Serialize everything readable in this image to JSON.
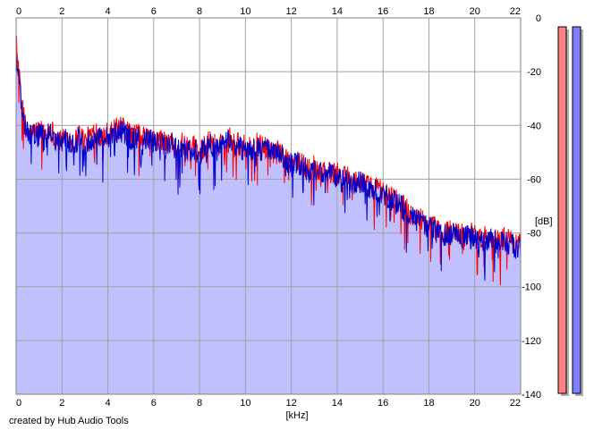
{
  "chart_data": {
    "type": "area",
    "xlabel": "[kHz]",
    "ylabel": "[dB]",
    "xlim": [
      0,
      22
    ],
    "ylim": [
      -140,
      0
    ],
    "x_ticks": [
      "0",
      "2",
      "4",
      "6",
      "8",
      "10",
      "12",
      "14",
      "16",
      "18",
      "20",
      "22"
    ],
    "y_ticks": [
      "0",
      "-20",
      "-40",
      "-60",
      "-80",
      "-100",
      "-120",
      "-140"
    ],
    "grid": true,
    "fill_color": "#c0c0ff",
    "series": [
      {
        "color": "#ff0000",
        "x": [
          0.0,
          0.1,
          0.2,
          0.35,
          0.5,
          0.75,
          1.0,
          1.25,
          1.5,
          1.75,
          2.0,
          2.25,
          2.5,
          2.75,
          3.0,
          3.25,
          3.5,
          3.75,
          4.0,
          4.25,
          4.5,
          4.75,
          5.0,
          5.25,
          5.5,
          5.75,
          6.0,
          6.25,
          6.5,
          6.75,
          7.0,
          7.25,
          7.5,
          7.75,
          8.0,
          8.25,
          8.5,
          8.75,
          9.0,
          9.25,
          9.5,
          9.75,
          10.0,
          10.25,
          10.5,
          10.75,
          11.0,
          11.25,
          11.5,
          11.75,
          12.0,
          12.25,
          12.5,
          12.75,
          13.0,
          13.25,
          13.5,
          13.75,
          14.0,
          14.25,
          14.5,
          14.75,
          15.0,
          15.25,
          15.5,
          15.75,
          16.0,
          16.25,
          16.5,
          16.75,
          17.0,
          17.25,
          17.5,
          17.75,
          18.0,
          18.25,
          18.5,
          18.75,
          19.0,
          19.25,
          19.5,
          19.75,
          20.0,
          20.25,
          20.5,
          20.75,
          21.0,
          21.25,
          21.5,
          21.75,
          22.0
        ],
        "y": [
          -8,
          -20,
          -28,
          -38,
          -44,
          -43,
          -42,
          -44,
          -41,
          -45,
          -46,
          -44,
          -47,
          -43,
          -46,
          -44,
          -42,
          -44,
          -43,
          -42,
          -41,
          -42,
          -44,
          -43,
          -45,
          -44,
          -46,
          -45,
          -47,
          -46,
          -48,
          -47,
          -49,
          -48,
          -50,
          -47,
          -46,
          -48,
          -45,
          -44,
          -46,
          -47,
          -48,
          -49,
          -47,
          -48,
          -49,
          -50,
          -50,
          -52,
          -54,
          -53,
          -55,
          -56,
          -55,
          -57,
          -56,
          -58,
          -58,
          -60,
          -59,
          -61,
          -60,
          -62,
          -64,
          -63,
          -65,
          -66,
          -67,
          -69,
          -71,
          -73,
          -74,
          -76,
          -77,
          -78,
          -79,
          -80,
          -79,
          -80,
          -81,
          -80,
          -81,
          -82,
          -81,
          -82,
          -83,
          -82,
          -83,
          -84,
          -84
        ]
      },
      {
        "color": "#0000cc",
        "x": [
          0.0,
          0.1,
          0.2,
          0.35,
          0.5,
          0.75,
          1.0,
          1.25,
          1.5,
          1.75,
          2.0,
          2.25,
          2.5,
          2.75,
          3.0,
          3.25,
          3.5,
          3.75,
          4.0,
          4.25,
          4.5,
          4.75,
          5.0,
          5.25,
          5.5,
          5.75,
          6.0,
          6.25,
          6.5,
          6.75,
          7.0,
          7.25,
          7.5,
          7.75,
          8.0,
          8.25,
          8.5,
          8.75,
          9.0,
          9.25,
          9.5,
          9.75,
          10.0,
          10.25,
          10.5,
          10.75,
          11.0,
          11.25,
          11.5,
          11.75,
          12.0,
          12.25,
          12.5,
          12.75,
          13.0,
          13.25,
          13.5,
          13.75,
          14.0,
          14.25,
          14.5,
          14.75,
          15.0,
          15.25,
          15.5,
          15.75,
          16.0,
          16.25,
          16.5,
          16.75,
          17.0,
          17.25,
          17.5,
          17.75,
          18.0,
          18.25,
          18.5,
          18.75,
          19.0,
          19.25,
          19.5,
          19.75,
          20.0,
          20.25,
          20.5,
          20.75,
          21.0,
          21.25,
          21.5,
          21.75,
          22.0
        ],
        "y": [
          -12,
          -22,
          -30,
          -40,
          -42,
          -44,
          -43,
          -45,
          -42,
          -46,
          -47,
          -45,
          -48,
          -44,
          -47,
          -45,
          -43,
          -45,
          -44,
          -43,
          -42,
          -43,
          -45,
          -44,
          -46,
          -45,
          -47,
          -46,
          -48,
          -47,
          -49,
          -48,
          -50,
          -49,
          -51,
          -48,
          -47,
          -49,
          -46,
          -45,
          -47,
          -48,
          -49,
          -50,
          -48,
          -49,
          -50,
          -51,
          -51,
          -53,
          -55,
          -54,
          -56,
          -57,
          -56,
          -58,
          -57,
          -59,
          -59,
          -61,
          -60,
          -62,
          -61,
          -63,
          -65,
          -64,
          -66,
          -67,
          -68,
          -70,
          -72,
          -74,
          -75,
          -77,
          -78,
          -79,
          -80,
          -81,
          -80,
          -81,
          -82,
          -81,
          -82,
          -83,
          -82,
          -83,
          -84,
          -83,
          -84,
          -85,
          -85
        ]
      }
    ],
    "level_meters": [
      {
        "color": "#ff8080",
        "level_db": 0
      },
      {
        "color": "#8080ff",
        "level_db": 0
      }
    ]
  },
  "footer": {
    "credit": "created by Hub Audio Tools"
  }
}
